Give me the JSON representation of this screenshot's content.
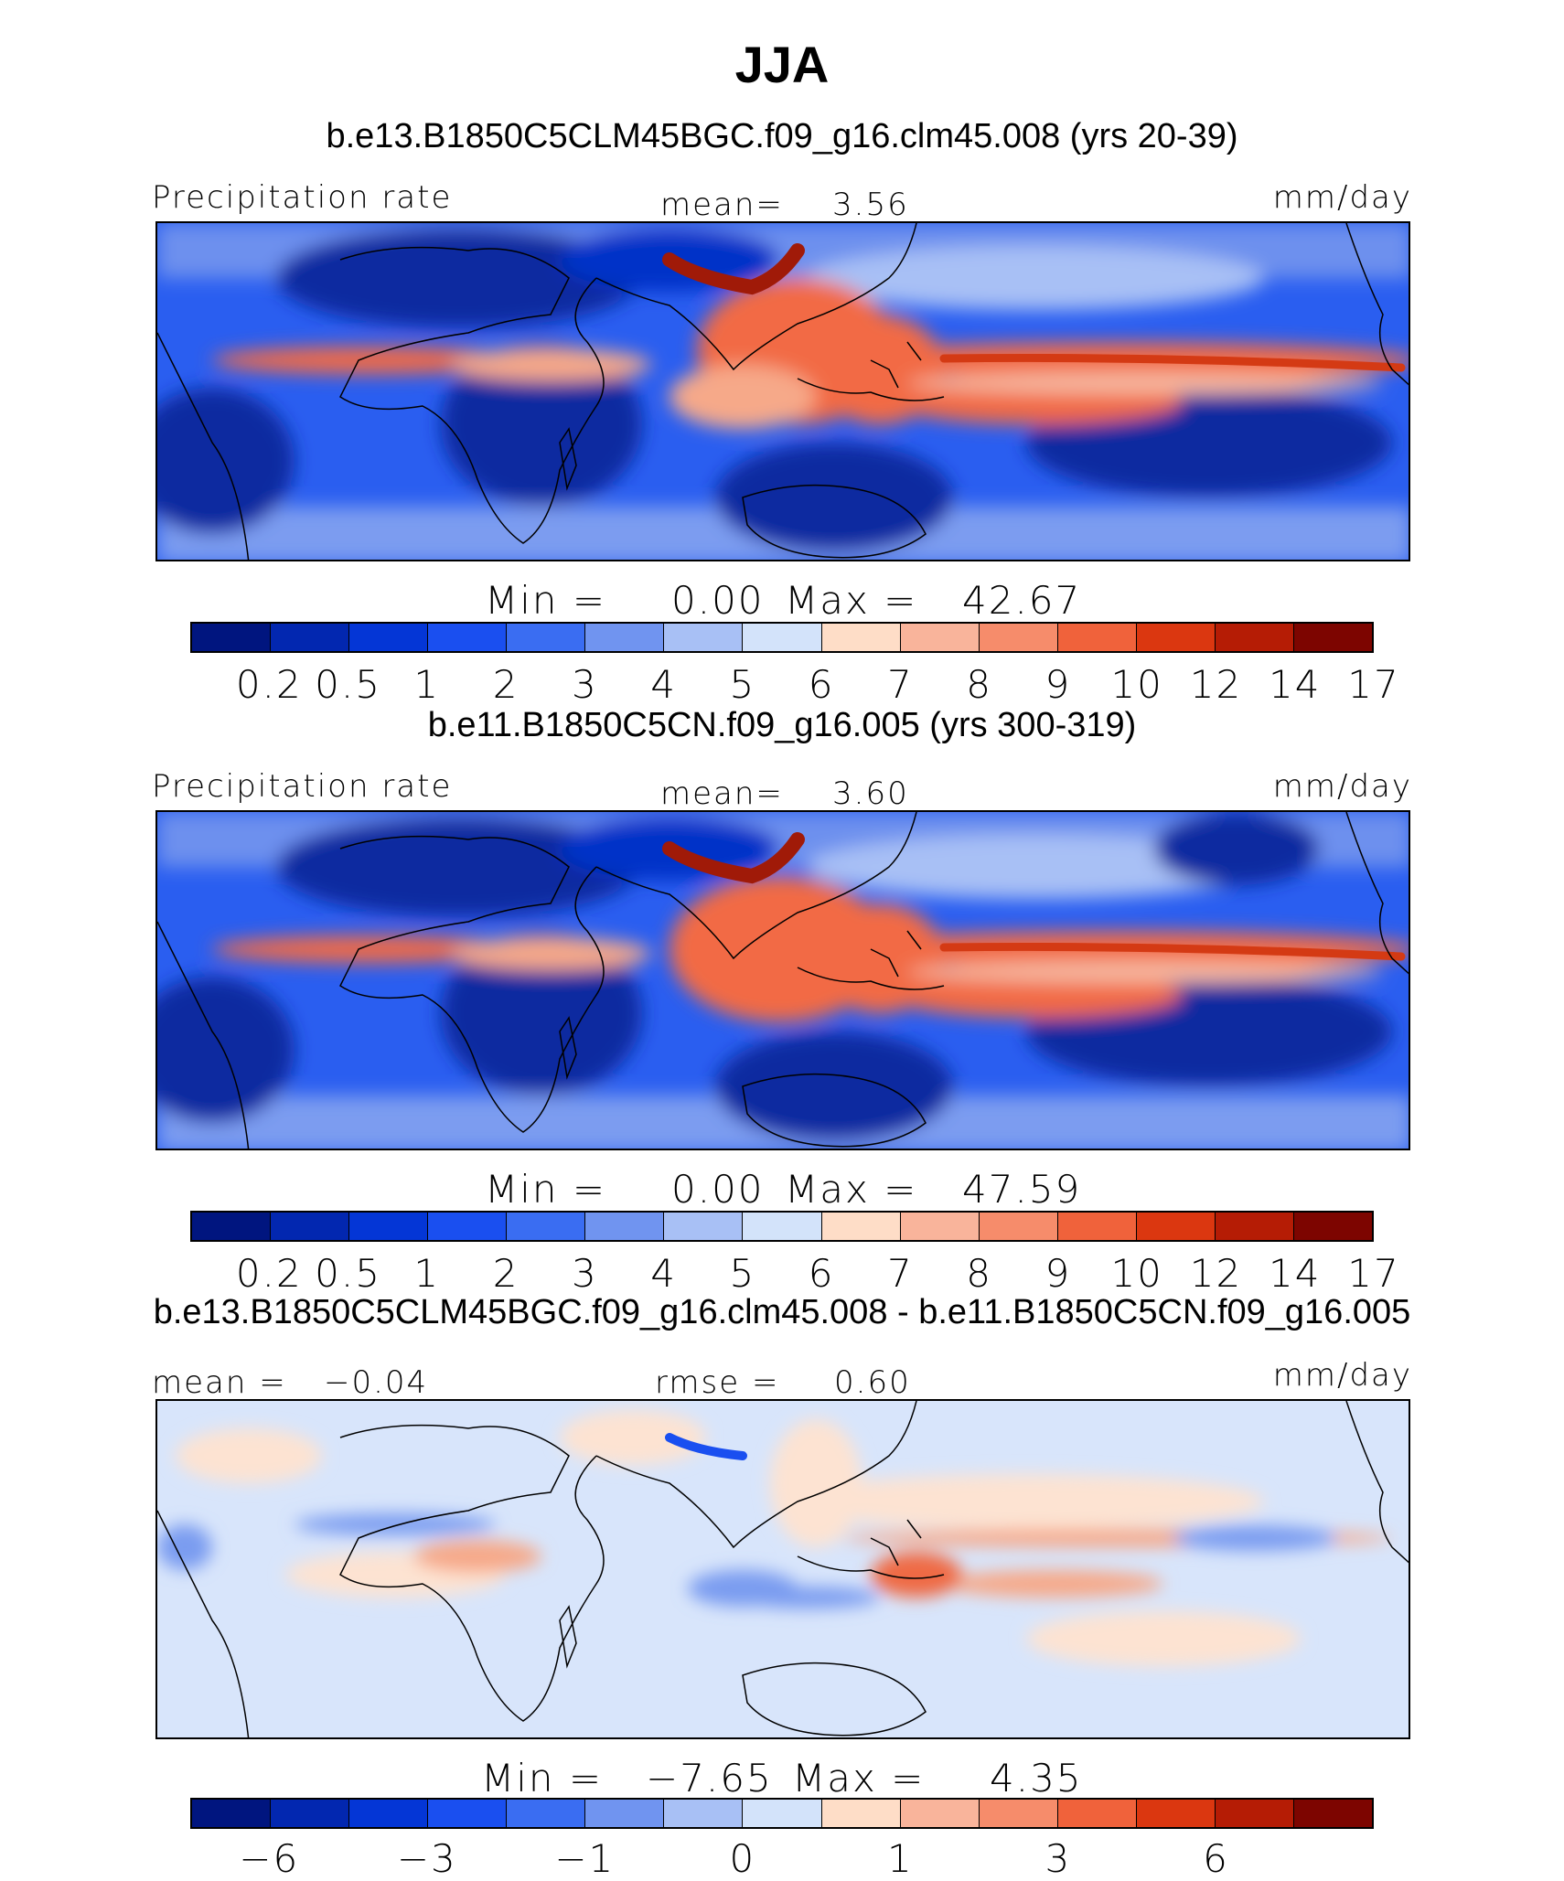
{
  "figure": {
    "title": "JJA"
  },
  "chart_data": [
    {
      "type": "heatmap",
      "title": "b.e13.B1850C5CLM45BGC.f09_g16.clm45.008 (yrs 20-39)",
      "variable": "Precipitation rate",
      "stat_label": "mean=",
      "stat_value": "3.56",
      "units": "mm/day",
      "min_label": "Min  =",
      "min_value": "0.00",
      "max_label": "Max  =",
      "max_value": "42.67",
      "colorbar": {
        "levels": [
          "0.2",
          "0.5",
          "1",
          "2",
          "3",
          "4",
          "5",
          "6",
          "7",
          "8",
          "9",
          "10",
          "12",
          "14",
          "17"
        ],
        "colors": [
          "#00157f",
          "#0227b0",
          "#0436d6",
          "#1a4ff0",
          "#3a6df2",
          "#7094f0",
          "#a8c0f5",
          "#d3e3fa",
          "#feddc7",
          "#f9b49b",
          "#f68c6b",
          "#f0623b",
          "#db3710",
          "#b51c05",
          "#7d0500"
        ]
      }
    },
    {
      "type": "heatmap",
      "title": "b.e11.B1850C5CN.f09_g16.005 (yrs 300-319)",
      "variable": "Precipitation rate",
      "stat_label": "mean=",
      "stat_value": "3.60",
      "units": "mm/day",
      "min_label": "Min  =",
      "min_value": "0.00",
      "max_label": "Max  =",
      "max_value": "47.59",
      "colorbar": {
        "levels": [
          "0.2",
          "0.5",
          "1",
          "2",
          "3",
          "4",
          "5",
          "6",
          "7",
          "8",
          "9",
          "10",
          "12",
          "14",
          "17"
        ],
        "colors": [
          "#00157f",
          "#0227b0",
          "#0436d6",
          "#1a4ff0",
          "#3a6df2",
          "#7094f0",
          "#a8c0f5",
          "#d3e3fa",
          "#feddc7",
          "#f9b49b",
          "#f68c6b",
          "#f0623b",
          "#db3710",
          "#b51c05",
          "#7d0500"
        ]
      }
    },
    {
      "type": "heatmap",
      "title": "b.e13.B1850C5CLM45BGC.f09_g16.clm45.008 - b.e11.B1850C5CN.f09_g16.005",
      "left_label": "mean  =",
      "left_value": "−0.04",
      "stat_label": "rmse  =",
      "stat_value": "0.60",
      "units": "mm/day",
      "min_label": "Min  =",
      "min_value": "−7.65",
      "max_label": "Max  =",
      "max_value": "4.35",
      "colorbar": {
        "levels": [
          "−6",
          "",
          "−3",
          "",
          "−1",
          "",
          "0",
          "",
          "1",
          "",
          "3",
          "",
          "6",
          "",
          ""
        ],
        "colors": [
          "#00157f",
          "#0227b0",
          "#0436d6",
          "#1a4ff0",
          "#3a6df2",
          "#7094f0",
          "#a8c0f5",
          "#d3e3fa",
          "#feddc7",
          "#f9b49b",
          "#f68c6b",
          "#f0623b",
          "#db3710",
          "#b51c05",
          "#7d0500"
        ]
      }
    }
  ]
}
